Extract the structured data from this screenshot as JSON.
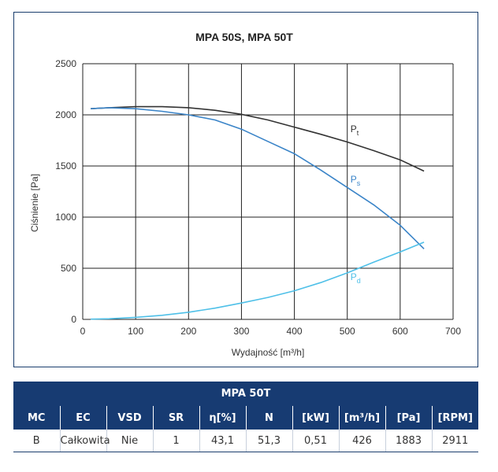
{
  "chart_data": {
    "type": "line",
    "title": "MPA 50S, MPA 50T",
    "xlabel": "Wydajność [m³/h]",
    "ylabel": "Ciśnienie [Pa]",
    "xlim": [
      0,
      700
    ],
    "ylim": [
      0,
      2500
    ],
    "x_ticks": [
      "0",
      "100",
      "200",
      "300",
      "400",
      "500",
      "600",
      "700"
    ],
    "y_ticks": [
      "0",
      "500",
      "1000",
      "1500",
      "2000",
      "2500"
    ],
    "grid": true,
    "series": [
      {
        "name": "Pt",
        "label_main": "P",
        "label_sub": "t",
        "color": "#333333",
        "x": [
          15,
          50,
          100,
          150,
          200,
          250,
          300,
          350,
          400,
          450,
          500,
          550,
          600,
          645
        ],
        "y": [
          2060,
          2070,
          2080,
          2080,
          2070,
          2045,
          2005,
          1950,
          1880,
          1810,
          1735,
          1650,
          1560,
          1450
        ]
      },
      {
        "name": "Ps",
        "label_main": "P",
        "label_sub": "s",
        "color": "#3a84c8",
        "x": [
          15,
          50,
          100,
          150,
          200,
          250,
          300,
          350,
          400,
          450,
          500,
          550,
          600,
          645
        ],
        "y": [
          2060,
          2070,
          2060,
          2035,
          2000,
          1950,
          1860,
          1740,
          1620,
          1460,
          1290,
          1120,
          920,
          690
        ]
      },
      {
        "name": "Pd",
        "label_main": "P",
        "label_sub": "d",
        "color": "#4fc0e8",
        "x": [
          15,
          50,
          100,
          150,
          200,
          250,
          300,
          350,
          400,
          450,
          500,
          550,
          600,
          645
        ],
        "y": [
          2,
          6,
          20,
          40,
          70,
          110,
          160,
          215,
          280,
          360,
          455,
          560,
          660,
          755
        ]
      }
    ]
  },
  "table": {
    "title": "MPA 50T",
    "headers": [
      "MC",
      "EC",
      "VSD",
      "SR",
      "η[%]",
      "N",
      "[kW]",
      "[m³/h]",
      "[Pa]",
      "[RPM]"
    ],
    "row": [
      "B",
      "Całkowita",
      "Nie",
      "1",
      "43,1",
      "51,3",
      "0,51",
      "426",
      "1883",
      "2911"
    ]
  }
}
